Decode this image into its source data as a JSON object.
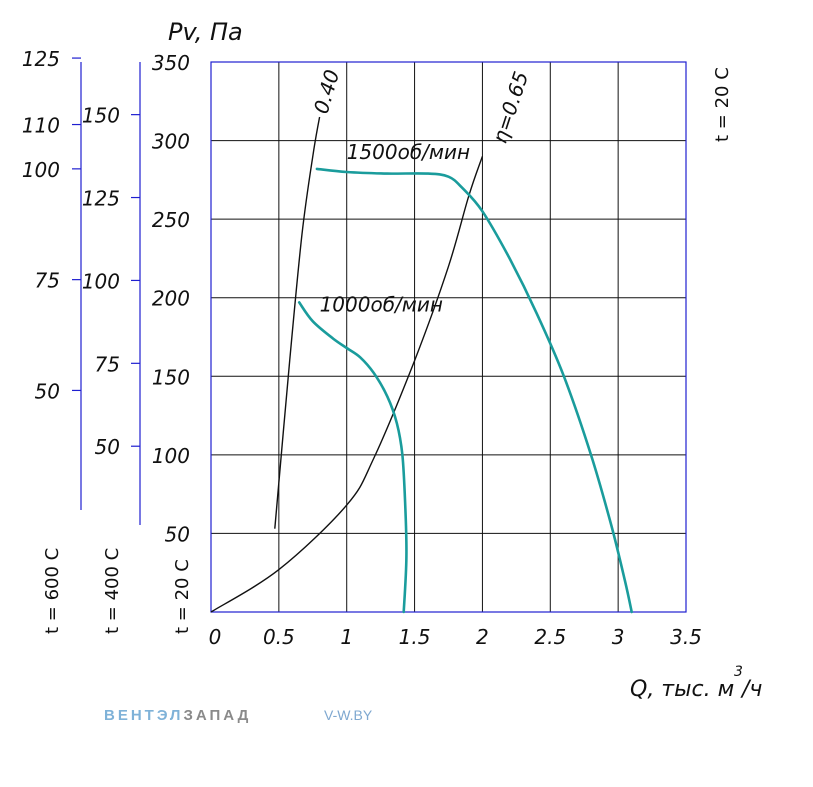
{
  "chart_data": {
    "type": "line",
    "xlabel": "Q, тыс. м",
    "xlabel_sup": "3",
    "xlabel_tail": "/ч",
    "ylabel": "Pv, Па",
    "xlim": [
      0,
      3.5
    ],
    "ylim": [
      0,
      350
    ],
    "grid": true,
    "x_ticks": [
      0,
      0.5,
      1,
      1.5,
      2,
      2.5,
      3,
      3.5
    ],
    "x_tick_labels": [
      "0",
      "0.5",
      "1",
      "1.5",
      "2",
      "2.5",
      "3",
      "3.5"
    ],
    "y_axes": [
      {
        "name": "t = 20 C",
        "ticks": [
          50,
          100,
          150,
          200,
          250,
          300,
          350
        ],
        "tick_labels": [
          "50",
          "100",
          "150",
          "200",
          "250",
          "300",
          "350"
        ]
      },
      {
        "name": "t = 400 C",
        "ticks": [
          50,
          75,
          100,
          125,
          150
        ],
        "tick_labels": [
          "50",
          "75",
          "100",
          "125",
          "150"
        ],
        "scale_factor": 2.11
      },
      {
        "name": "t = 600 C",
        "ticks": [
          50,
          75,
          100,
          110,
          125
        ],
        "tick_labels": [
          "50",
          "75",
          "100",
          "110",
          "125"
        ],
        "scale_factor": 2.82
      }
    ],
    "right_label": "t = 20 C",
    "series": [
      {
        "name": "1500об/мин",
        "color": "#1a9c9c",
        "points": [
          [
            0.78,
            282
          ],
          [
            1.0,
            280
          ],
          [
            1.3,
            279
          ],
          [
            1.6,
            279
          ],
          [
            1.75,
            277
          ],
          [
            1.85,
            270
          ],
          [
            2.0,
            255
          ],
          [
            2.2,
            225
          ],
          [
            2.4,
            190
          ],
          [
            2.6,
            150
          ],
          [
            2.8,
            100
          ],
          [
            2.95,
            55
          ],
          [
            3.05,
            20
          ],
          [
            3.1,
            0
          ]
        ]
      },
      {
        "name": "1000об/мин",
        "color": "#1a9c9c",
        "points": [
          [
            0.65,
            197
          ],
          [
            0.75,
            185
          ],
          [
            0.9,
            174
          ],
          [
            1.0,
            168
          ],
          [
            1.1,
            162
          ],
          [
            1.2,
            152
          ],
          [
            1.3,
            137
          ],
          [
            1.37,
            120
          ],
          [
            1.41,
            100
          ],
          [
            1.43,
            70
          ],
          [
            1.44,
            35
          ],
          [
            1.42,
            0
          ]
        ]
      }
    ],
    "efficiency_lines": [
      {
        "label": "0.40",
        "color": "#111111",
        "points": [
          [
            0.47,
            53
          ],
          [
            0.58,
            160
          ],
          [
            0.67,
            240
          ],
          [
            0.75,
            290
          ],
          [
            0.8,
            315
          ]
        ]
      },
      {
        "label": "η=0.65",
        "color": "#111111",
        "points": [
          [
            0.0,
            0
          ],
          [
            0.5,
            27
          ],
          [
            1.0,
            68
          ],
          [
            1.2,
            98
          ],
          [
            1.5,
            160
          ],
          [
            1.75,
            220
          ],
          [
            1.9,
            265
          ],
          [
            2.0,
            290
          ]
        ]
      }
    ]
  },
  "watermark": {
    "brand_a": "ВЕНТЭЛ",
    "brand_b": "ЗАПАД",
    "site": "V-W.BY",
    "color_a": "#7fb2d8",
    "color_b": "#8a8a8a",
    "color_site": "#7fa8d0"
  },
  "colors": {
    "axis": "#1f1fd0",
    "grid": "#111111",
    "curve": "#1a9c9c"
  }
}
